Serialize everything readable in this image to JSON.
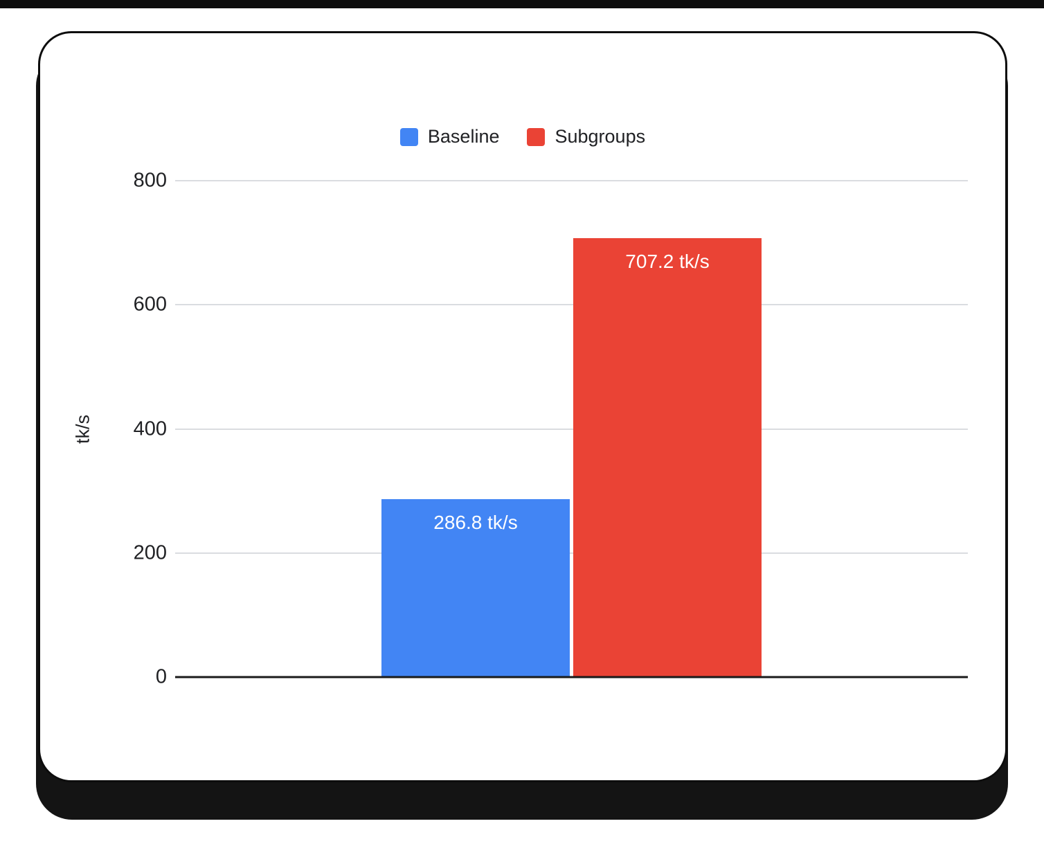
{
  "chart_data": {
    "type": "bar",
    "title": "",
    "xlabel": "",
    "ylabel": "tk/s",
    "ylim": [
      0,
      800
    ],
    "yticks": [
      0,
      200,
      400,
      600,
      800
    ],
    "grid": true,
    "legend_position": "top",
    "series": [
      {
        "name": "Baseline",
        "value": 286.8,
        "label": "286.8 tk/s",
        "color": "#4285F4"
      },
      {
        "name": "Subgroups",
        "value": 707.2,
        "label": "707.2 tk/s",
        "color": "#EA4335"
      }
    ]
  }
}
